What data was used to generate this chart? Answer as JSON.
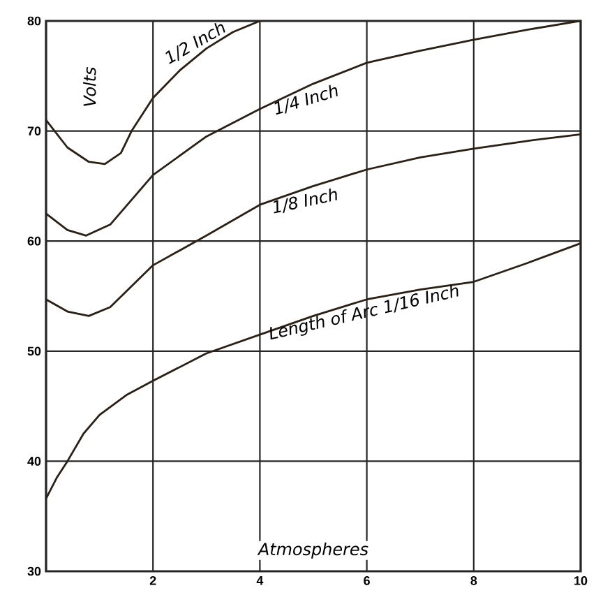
{
  "chart_data": {
    "type": "line",
    "xlabel": "Atmospheres",
    "ylabel": "Volts",
    "xlim": [
      0,
      10
    ],
    "ylim": [
      30,
      80
    ],
    "xticks": [
      {
        "value": 0,
        "label": null
      },
      2,
      4,
      6,
      8,
      10
    ],
    "yticks": [
      30,
      40,
      50,
      60,
      70,
      80
    ],
    "grid": true,
    "series": [
      {
        "name": "1/2 Inch",
        "color": "#2a2015",
        "x": [
          0,
          0.4,
          0.8,
          1.1,
          1.4,
          1.6,
          2,
          2.5,
          3,
          3.5,
          4
        ],
        "values": [
          71,
          68.5,
          67.2,
          67,
          68,
          70,
          73,
          75.5,
          77.5,
          79,
          80
        ]
      },
      {
        "name": "1/4 Inch",
        "color": "#2a2015",
        "x": [
          0,
          0.4,
          0.75,
          1.2,
          2,
          3,
          4,
          5,
          6,
          7,
          8,
          9,
          10
        ],
        "values": [
          62.5,
          61,
          60.5,
          61.5,
          66,
          69.5,
          72,
          74.3,
          76.2,
          77.3,
          78.3,
          79.2,
          80
        ]
      },
      {
        "name": "1/8 Inch",
        "color": "#2a2015",
        "x": [
          0,
          0.4,
          0.8,
          1.2,
          2,
          3,
          4,
          5,
          6,
          7,
          8,
          9,
          10
        ],
        "values": [
          54.7,
          53.6,
          53.2,
          54,
          57.8,
          60.5,
          63.3,
          65,
          66.5,
          67.6,
          68.4,
          69.1,
          69.7
        ]
      },
      {
        "name": "Length of Arc 1/16 Inch",
        "color": "#2a2015",
        "x": [
          0,
          0.2,
          0.4,
          0.7,
          1,
          1.5,
          2,
          3,
          4,
          5,
          6,
          7,
          8,
          9,
          10
        ],
        "values": [
          36.6,
          38.5,
          40,
          42.5,
          44.2,
          46,
          47.3,
          49.8,
          51.5,
          53.2,
          54.7,
          55.6,
          56.3,
          58,
          59.8
        ]
      }
    ]
  }
}
